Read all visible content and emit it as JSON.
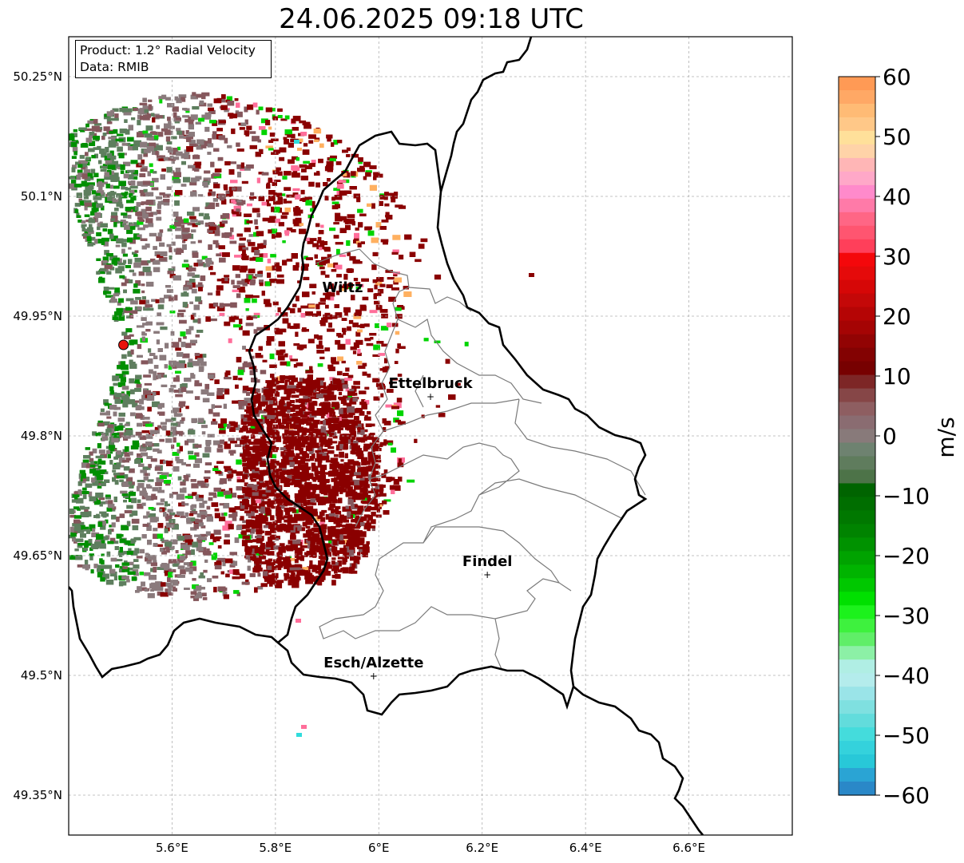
{
  "title": "24.06.2025 09:18 UTC",
  "info": {
    "product": "Product: 1.2° Radial Velocity",
    "data": "Data: RMIB"
  },
  "axes": {
    "lat_labels": [
      "50.25°N",
      "50.1°N",
      "49.95°N",
      "49.8°N",
      "49.65°N",
      "49.5°N",
      "49.35°N"
    ],
    "lon_labels": [
      "5.6°E",
      "5.8°E",
      "6°E",
      "6.2°E",
      "6.4°E",
      "6.6°E"
    ],
    "lat_range": [
      49.3,
      50.3
    ],
    "lon_range": [
      5.4,
      6.8
    ],
    "grid": true
  },
  "cities": [
    {
      "name": "Wiltz",
      "lon": 5.93,
      "lat": 49.97,
      "marker": false
    },
    {
      "name": "Ettelbruck",
      "lon": 6.1,
      "lat": 49.85,
      "marker": true
    },
    {
      "name": "Findel",
      "lon": 6.21,
      "lat": 49.627,
      "marker": true
    },
    {
      "name": "Esch/Alzette",
      "lon": 5.99,
      "lat": 49.5,
      "marker": true
    }
  ],
  "radar_site": {
    "lon": 5.506,
    "lat": 49.914,
    "color": "#e8130b"
  },
  "colorbar": {
    "label": "m/s",
    "ticks": [
      "60",
      "50",
      "40",
      "30",
      "20",
      "10",
      "0",
      "−10",
      "−20",
      "−30",
      "−40",
      "−50",
      "−60"
    ],
    "vmin": -60,
    "vmax": 60,
    "colors_top_to_bottom": [
      "#ff9a55",
      "#ffa865",
      "#ffbb75",
      "#ffc888",
      "#ffe09a",
      "#ffd3a8",
      "#ffb6b6",
      "#ffa8c8",
      "#ff8acb",
      "#ff7aa8",
      "#ff6685",
      "#ff5570",
      "#ff3f5a",
      "#f4080b",
      "#e50a0a",
      "#d60707",
      "#c40808",
      "#b50505",
      "#a50404",
      "#920303",
      "#830202",
      "#770101",
      "#7d2626",
      "#864647",
      "#8e5e61",
      "#8a6c71",
      "#887a7a",
      "#6e8270",
      "#5f7c5d",
      "#4d7348",
      "#006400",
      "#006e00",
      "#007800",
      "#008300",
      "#009200",
      "#00a300",
      "#00b400",
      "#00c800",
      "#00e000",
      "#1cf21c",
      "#3ef13e",
      "#60ee68",
      "#8cf0a6",
      "#b0eee4",
      "#b4ecec",
      "#9ae4e8",
      "#7fe0e0",
      "#62dcdc",
      "#44dcdc",
      "#34d2dc",
      "#28c8d8",
      "#2aa4d4",
      "#2a88c8"
    ]
  },
  "radar_colors": {
    "inbound_far": "#5e7e5e",
    "near_zero": "#8a7a7c",
    "weak_out": "#85575c",
    "strong_out": "#8a0000",
    "green": "#008f00",
    "bright_green": "#00d400",
    "pink": "#ff6e9a",
    "cyan": "#30dcdc",
    "orange": "#ffb060"
  }
}
